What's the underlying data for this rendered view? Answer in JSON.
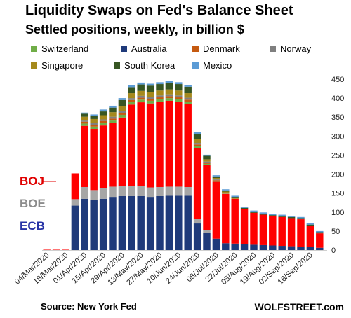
{
  "title": "Liquidity Swaps on Fed's Balance Sheet",
  "subtitle": "Settled positions, weekly, in billion $",
  "source": "Source: New York Fed",
  "brand": "WOLFSTREET.com",
  "callouts": {
    "boj": "BOJ",
    "boe": "BOE",
    "ecb": "ECB"
  },
  "colors": {
    "ECB": "#1f3a7a",
    "BOE": "#a6a6a6",
    "BOJ": "#ff0000",
    "Switzerland": "#70ad47",
    "Australia": "#1f3a7a",
    "Denmark": "#c55a11",
    "Norway": "#7f7f7f",
    "Singapore": "#a5891c",
    "South Korea": "#375623",
    "Mexico": "#5b9bd5",
    "callout_boj": "#e00000",
    "callout_boe": "#8c8c8c",
    "callout_ecb": "#2733a6"
  },
  "chart_data": {
    "type": "bar",
    "stacked": true,
    "title": "Liquidity Swaps on Fed's Balance Sheet",
    "subtitle": "Settled positions, weekly, in billion $",
    "ylim": [
      0,
      450
    ],
    "y_ticks": [
      0,
      50,
      100,
      150,
      200,
      250,
      300,
      350,
      400,
      450
    ],
    "y_axis_side": "right",
    "grid": false,
    "legend_position": "top",
    "categories": [
      "04/Mar/2020",
      "11/Mar/2020",
      "18/Mar/2020",
      "25/Mar/2020",
      "01/Apr/2020",
      "08/Apr/2020",
      "15/Apr/2020",
      "22/Apr/2020",
      "29/Apr/2020",
      "06/May/2020",
      "13/May/2020",
      "20/May/2020",
      "27/May/2020",
      "03/Jun/2020",
      "10/Jun/2020",
      "17/Jun/2020",
      "24/Jun/2020",
      "01/Jul/2020",
      "08/Jul/2020",
      "15/Jul/2020",
      "22/Jul/2020",
      "29/Jul/2020",
      "05/Aug/2020",
      "12/Aug/2020",
      "19/Aug/2020",
      "26/Aug/2020",
      "02/Sep/2020",
      "09/Sep/2020",
      "16/Sep/2020",
      "23/Sep/2020"
    ],
    "x_tick_labels": [
      "04/Mar/2020",
      "18/Mar/2020",
      "01/Apr/2020",
      "15/Apr/2020",
      "29/Apr/2020",
      "13/May/2020",
      "27/May/2020",
      "10/Jun/2020",
      "24/Jun/2020",
      "08/Jul/2020",
      "22/Jul/2020",
      "05/Aug/2020",
      "19/Aug/2020",
      "02/Sep/2020",
      "16/Sep/2020"
    ],
    "series": [
      {
        "name": "ECB",
        "values": [
          0.1,
          0.1,
          0.1,
          117,
          135,
          131,
          135,
          140,
          142,
          142,
          142,
          140,
          142,
          143,
          143,
          143,
          70,
          45,
          30,
          18,
          17,
          15,
          14,
          13,
          12,
          11,
          10,
          9,
          8,
          6
        ]
      },
      {
        "name": "BOE",
        "values": [
          0,
          0,
          0,
          17,
          31,
          27,
          28,
          27,
          27,
          27,
          27,
          25,
          24,
          24,
          24,
          23,
          12,
          7,
          0,
          0,
          0,
          0,
          0,
          0,
          0,
          0,
          0,
          0,
          0,
          0
        ]
      },
      {
        "name": "BOJ",
        "values": [
          1,
          1,
          1,
          68,
          161,
          161,
          165,
          167,
          180,
          214,
          220,
          221,
          224,
          226,
          223,
          219,
          187,
          172,
          150,
          130,
          118,
          92,
          84,
          80,
          77,
          76,
          74,
          72,
          56,
          38
        ]
      },
      {
        "name": "Switzerland",
        "values": [
          0,
          0,
          0,
          0,
          6,
          6,
          7,
          7,
          7,
          7,
          7,
          7,
          7,
          7,
          7,
          6,
          5,
          3,
          2,
          1,
          0,
          0,
          0,
          0,
          0,
          0,
          0,
          0,
          0,
          0
        ]
      },
      {
        "name": "Australia",
        "values": [
          0,
          0,
          0,
          0,
          0,
          0,
          0,
          0,
          0,
          0,
          0,
          0,
          0,
          0,
          0,
          0,
          0,
          0,
          0,
          0,
          0,
          0,
          0,
          0,
          0,
          0,
          0,
          0,
          0,
          0
        ]
      },
      {
        "name": "Denmark",
        "values": [
          0,
          0,
          0,
          0,
          5,
          5,
          5,
          5,
          5,
          5,
          5,
          5,
          5,
          5,
          5,
          5,
          4,
          3,
          2,
          1,
          0,
          0,
          0,
          0,
          0,
          0,
          0,
          0,
          0,
          0
        ]
      },
      {
        "name": "Norway",
        "values": [
          0,
          0,
          0,
          0,
          3,
          4,
          4,
          5,
          5,
          5,
          5,
          5,
          5,
          5,
          5,
          5,
          4,
          3,
          2,
          1,
          0,
          0,
          0,
          0,
          0,
          0,
          0,
          0,
          0,
          0
        ]
      },
      {
        "name": "Singapore",
        "values": [
          0,
          0,
          0,
          0,
          10,
          11,
          11,
          12,
          13,
          13,
          13,
          13,
          13,
          13,
          13,
          12,
          10,
          6,
          4,
          3,
          2,
          1,
          0,
          0,
          0,
          0,
          0,
          0,
          0,
          0
        ]
      },
      {
        "name": "South Korea",
        "values": [
          0,
          0,
          0,
          0,
          8,
          8,
          10,
          12,
          16,
          16,
          17,
          17,
          17,
          17,
          17,
          17,
          13,
          9,
          4,
          3,
          3,
          3,
          3,
          3,
          3,
          3,
          3,
          3,
          3,
          3
        ]
      },
      {
        "name": "Mexico",
        "values": [
          0,
          0,
          0,
          0,
          3,
          4,
          5,
          5,
          5,
          5,
          5,
          5,
          5,
          5,
          5,
          5,
          5,
          3,
          3,
          3,
          3,
          3,
          3,
          3,
          3,
          3,
          3,
          3,
          3,
          3
        ]
      }
    ]
  }
}
